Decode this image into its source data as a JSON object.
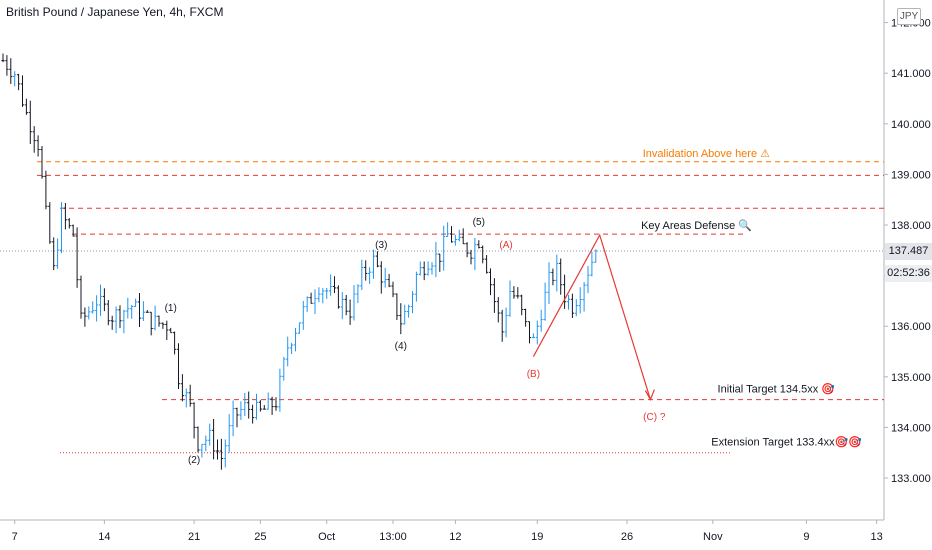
{
  "header": {
    "title": "British Pound / Japanese Yen, 4h, FXCM",
    "currency": "JPY"
  },
  "price_tag": {
    "last_price": "137.487",
    "countdown": "02:52:36"
  },
  "chart_data": {
    "type": "bar",
    "title": "British Pound / Japanese Yen, 4h, FXCM",
    "xlabel": "",
    "ylabel": "",
    "ylim": [
      132.6,
      142.7
    ],
    "y_ticks": [
      "133.000",
      "134.000",
      "135.000",
      "136.000",
      "137.000",
      "138.000",
      "139.000",
      "140.000",
      "141.000",
      "142.000"
    ],
    "y_tick_values": [
      133,
      134,
      135,
      136,
      137,
      138,
      139,
      140,
      141,
      142
    ],
    "x_ticks": [
      "7",
      "14",
      "21",
      "25",
      "Oct",
      "13:00",
      "12",
      "19",
      "26",
      "Nov",
      "9",
      "13"
    ],
    "x_tick_index": [
      3,
      26,
      49,
      66,
      83,
      100,
      116,
      137,
      160,
      182,
      206,
      224
    ],
    "bar_count": 228,
    "last_price": 137.487,
    "path": [
      [
        0,
        141.25
      ],
      [
        3,
        141.0
      ],
      [
        6,
        140.2
      ],
      [
        9,
        139.6
      ],
      [
        11,
        138.2
      ],
      [
        13,
        137.1
      ],
      [
        15,
        138.2
      ],
      [
        18,
        137.8
      ],
      [
        20,
        136.1
      ],
      [
        24,
        136.5
      ],
      [
        28,
        136.2
      ],
      [
        33,
        136.4
      ],
      [
        38,
        136.1
      ],
      [
        43,
        136.0
      ],
      [
        45,
        135.0
      ],
      [
        48,
        134.4
      ],
      [
        50,
        133.7
      ],
      [
        53,
        133.8
      ],
      [
        56,
        133.4
      ],
      [
        59,
        134.2
      ],
      [
        62,
        134.4
      ],
      [
        66,
        134.3
      ],
      [
        70,
        134.5
      ],
      [
        73,
        135.6
      ],
      [
        77,
        136.3
      ],
      [
        81,
        136.8
      ],
      [
        85,
        136.6
      ],
      [
        89,
        136.3
      ],
      [
        92,
        137.0
      ],
      [
        95,
        137.3
      ],
      [
        97,
        137.0
      ],
      [
        100,
        136.5
      ],
      [
        102,
        136.1
      ],
      [
        104,
        136.4
      ],
      [
        106,
        137.0
      ],
      [
        109,
        137.3
      ],
      [
        112,
        137.4
      ],
      [
        114,
        137.8
      ],
      [
        117,
        137.6
      ],
      [
        120,
        137.5
      ],
      [
        122,
        137.7
      ],
      [
        124,
        137.2
      ],
      [
        126,
        136.5
      ],
      [
        128,
        135.9
      ],
      [
        130,
        136.7
      ],
      [
        132,
        136.5
      ],
      [
        134,
        136.0
      ],
      [
        136,
        135.7
      ],
      [
        138,
        136.3
      ],
      [
        140,
        136.9
      ],
      [
        142,
        137.1
      ],
      [
        144,
        136.6
      ],
      [
        146,
        136.4
      ],
      [
        148,
        136.7
      ],
      [
        150,
        137.1
      ],
      [
        152,
        137.5
      ]
    ],
    "annotations": {
      "wave_labels": [
        {
          "text": "(1)",
          "x": 43,
          "y": 136.3
        },
        {
          "text": "(2)",
          "x": 49,
          "y": 133.3
        },
        {
          "text": "(3)",
          "x": 97,
          "y": 137.55
        },
        {
          "text": "(4)",
          "x": 102,
          "y": 135.55
        },
        {
          "text": "(5)",
          "x": 122,
          "y": 138.0
        },
        {
          "text": "(A)",
          "x": 129,
          "y": 137.55
        },
        {
          "text": "(B)",
          "x": 136,
          "y": 135.0
        },
        {
          "text": "(C) ?",
          "x": 167,
          "y": 134.15
        }
      ],
      "levels": [
        {
          "label": "Invalidation Above here ⚠",
          "y": 139.25,
          "color": "#f57c00"
        },
        {
          "label": "",
          "y": 138.98,
          "color": "#e53935"
        },
        {
          "label": "",
          "y": 138.33,
          "color": "#e53935"
        },
        {
          "label": "Key Areas Defense 🔍",
          "y": 137.82,
          "color": "#e53935"
        },
        {
          "label": "Initial Target 134.5xx 🎯",
          "y": 134.55,
          "color": "#e53935"
        },
        {
          "label": "Extension Target 133.4xx🎯🎯",
          "y": 133.5,
          "color": "#e53935"
        }
      ],
      "projection": [
        [
          136,
          135.4
        ],
        [
          153,
          137.8
        ],
        [
          166,
          134.55
        ]
      ]
    }
  }
}
